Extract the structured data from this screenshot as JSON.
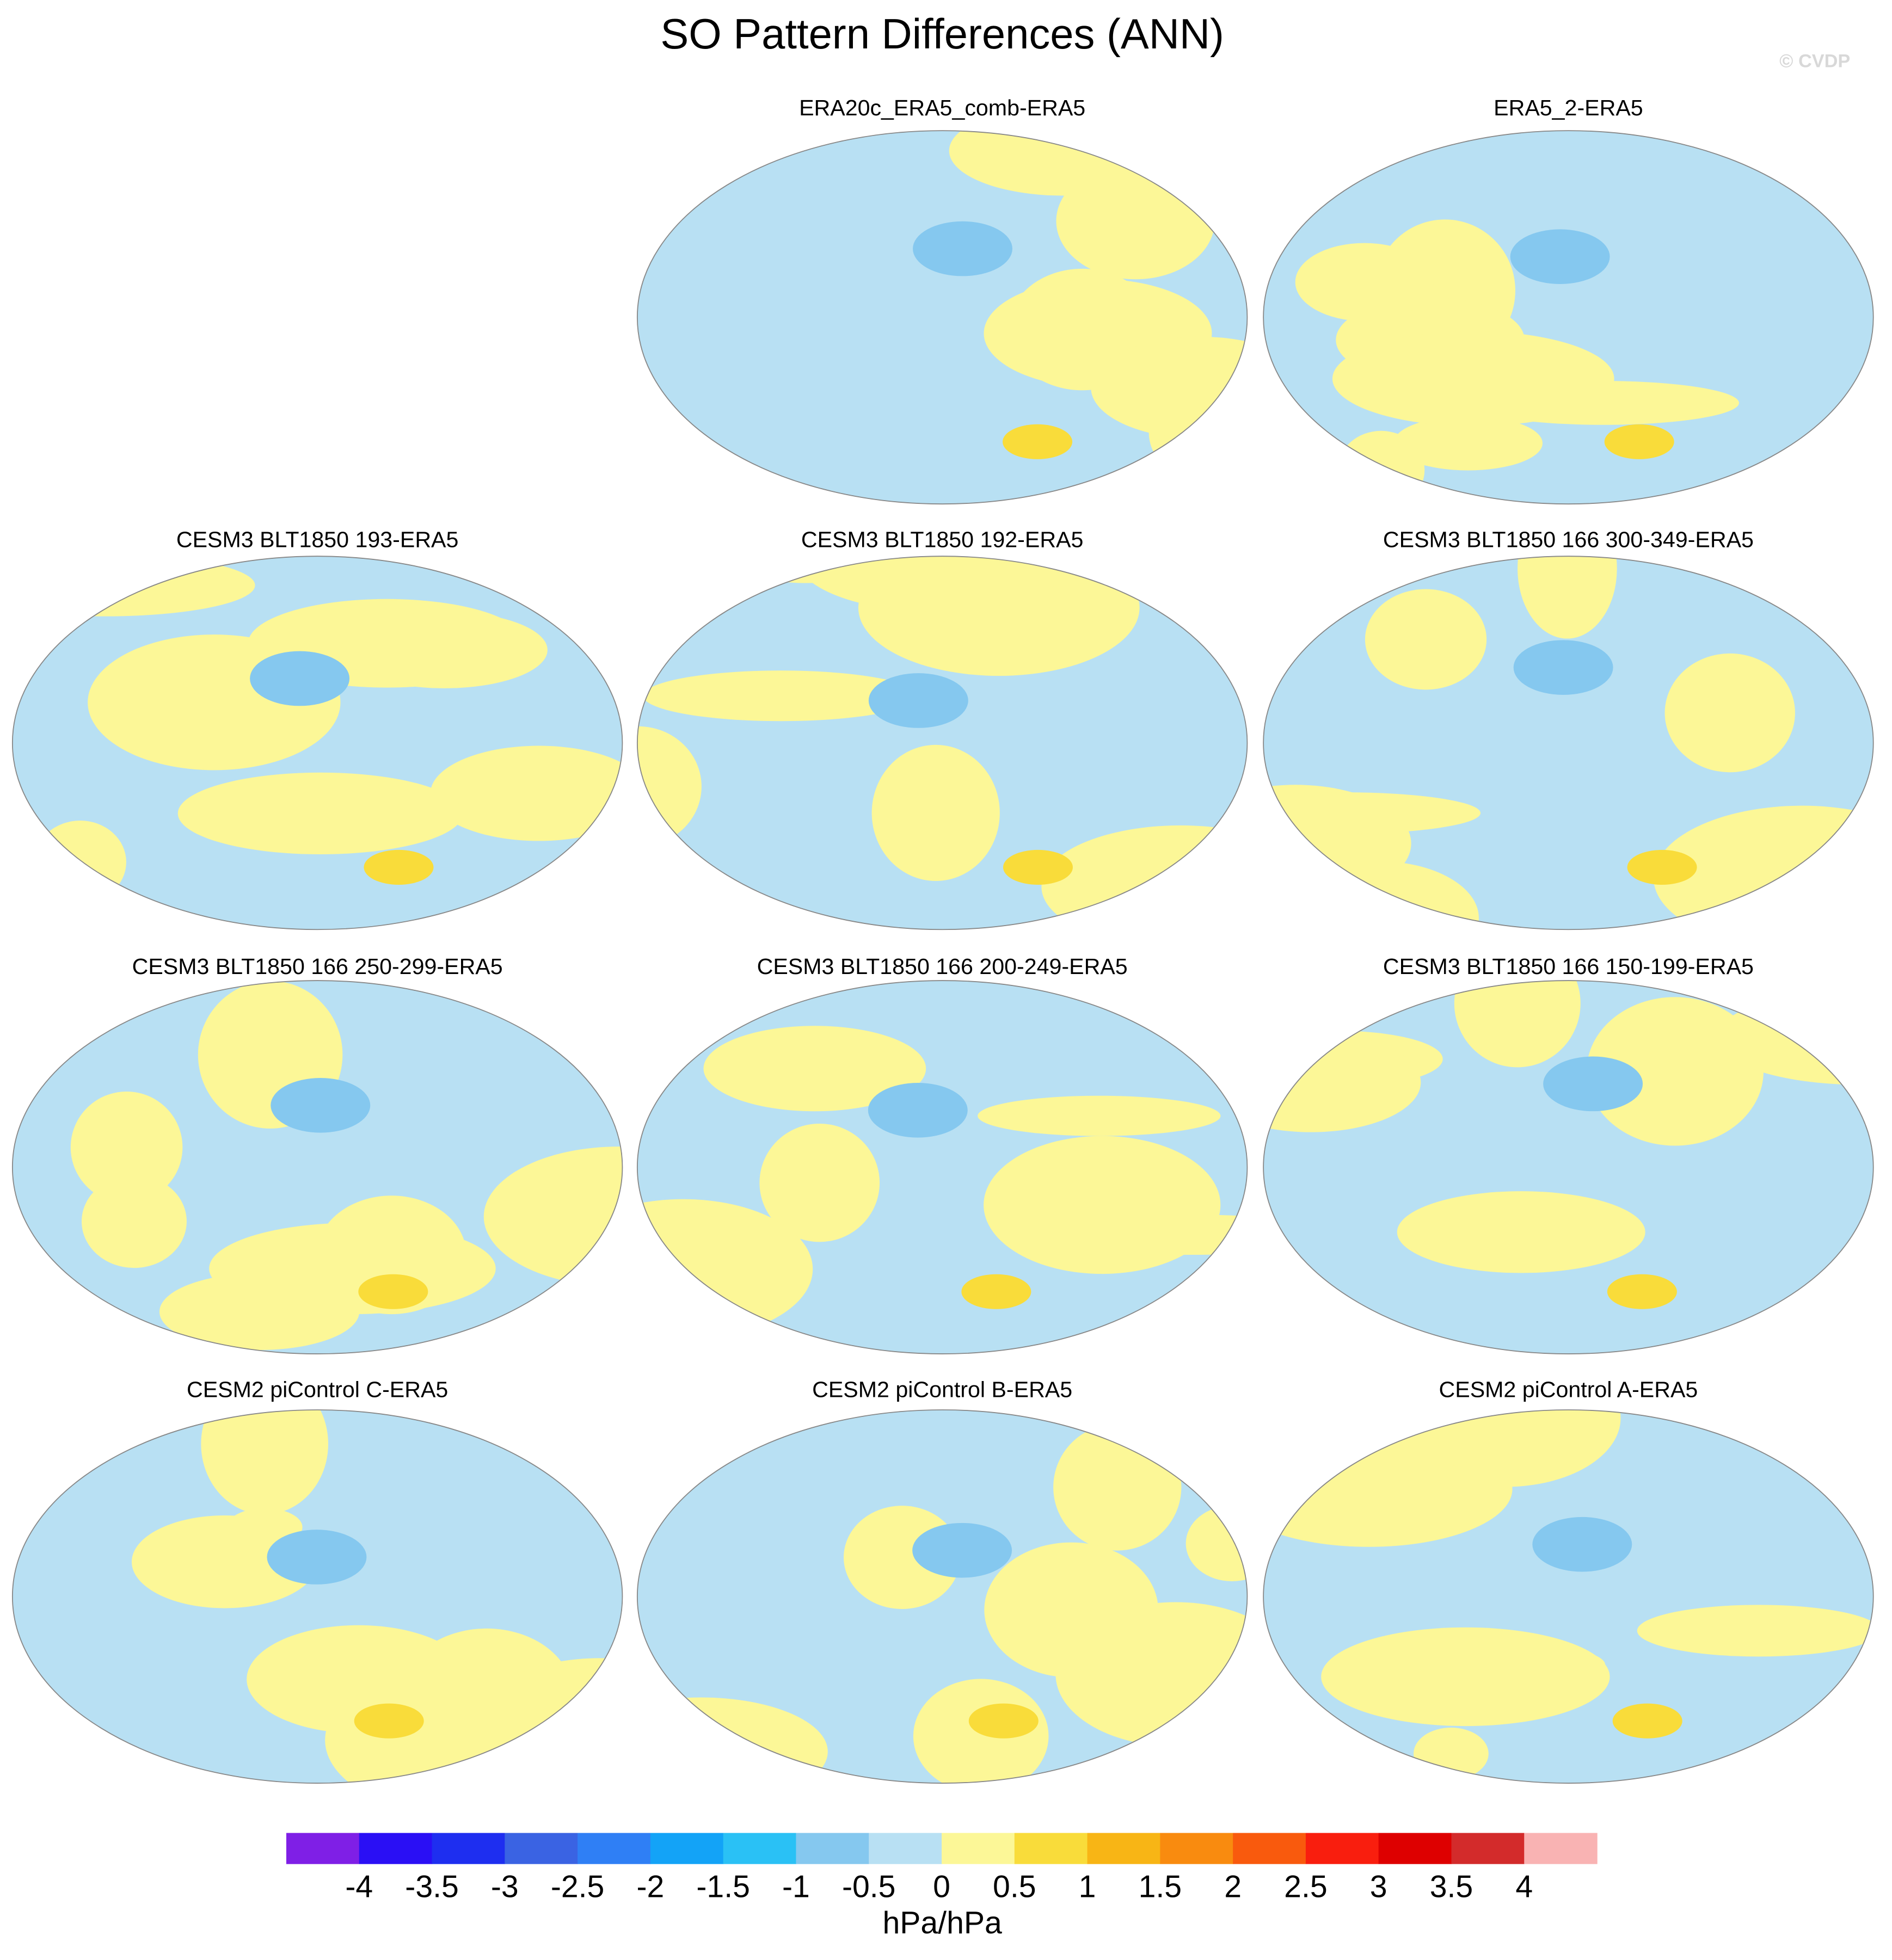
{
  "title": "SO Pattern Differences (ANN)",
  "watermark": "© CVDP",
  "panels": [
    {
      "title": "ERA20c_ERA5_comb-ERA5"
    },
    {
      "title": "ERA5_2-ERA5"
    },
    {
      "title": "CESM3 BLT1850 193-ERA5"
    },
    {
      "title": "CESM3 BLT1850 192-ERA5"
    },
    {
      "title": "CESM3 BLT1850 166 300-349-ERA5"
    },
    {
      "title": "CESM3 BLT1850 166 250-299-ERA5"
    },
    {
      "title": "CESM3 BLT1850 166 200-249-ERA5"
    },
    {
      "title": "CESM3 BLT1850 166 150-199-ERA5"
    },
    {
      "title": "CESM2 piControl C-ERA5"
    },
    {
      "title": "CESM2 piControl B-ERA5"
    },
    {
      "title": "CESM2 piControl A-ERA5"
    }
  ],
  "colorbar": {
    "colors": [
      "#7f1fe6",
      "#2a0ff5",
      "#1e2ef0",
      "#3a63e3",
      "#2f7ff5",
      "#13a3f7",
      "#2ac1f5",
      "#85c8ef",
      "#b8e0f3",
      "#fcf797",
      "#f9dc3a",
      "#f8b515",
      "#f98b0f",
      "#f95a0d",
      "#f91e0e",
      "#de0000",
      "#d32b2b",
      "#f9b3b3"
    ],
    "ticks": [
      -4,
      -3.5,
      -3,
      -2.5,
      -2,
      -1.5,
      -1,
      -0.5,
      0,
      0.5,
      1,
      1.5,
      2,
      2.5,
      3,
      3.5,
      4
    ],
    "label": "hPa/hPa"
  }
}
